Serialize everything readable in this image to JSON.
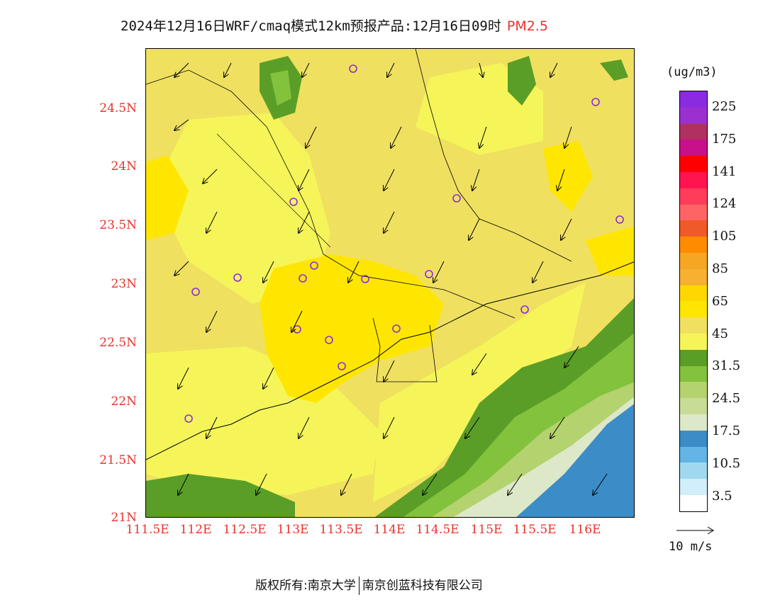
{
  "title": {
    "main": "2024年12月16日WRF/cmaq模式12km预报产品:12月16日09时",
    "pollutant": "PM2.5",
    "pollutant_color": "#e8322d"
  },
  "axes": {
    "y_ticks": [
      "24.5N",
      "24N",
      "23.5N",
      "23N",
      "22.5N",
      "22N",
      "21.5N",
      "21N"
    ],
    "x_ticks": [
      "111.5E",
      "112E",
      "112.5E",
      "113E",
      "113.5E",
      "114E",
      "114.5E",
      "115E",
      "115.5E",
      "116E"
    ]
  },
  "colorbar": {
    "unit": "(ug/m3)",
    "colors": [
      "#8a2be2",
      "#9b30d0",
      "#b03060",
      "#c8108a",
      "#ff0000",
      "#ff1450",
      "#ff3c5a",
      "#ff6464",
      "#f05a28",
      "#ff8c00",
      "#f5a623",
      "#f8b030",
      "#ffd700",
      "#ffe600",
      "#f0e060",
      "#f5f55a",
      "#5a9e28",
      "#82c23c",
      "#b4d26e",
      "#c8dc96",
      "#dce8c8",
      "#3c8cc8",
      "#64b4e6",
      "#a0d8f0",
      "#d2eefa",
      "#ffffff"
    ],
    "labels": [
      "225",
      "175",
      "141",
      "124",
      "105",
      "85",
      "65",
      "45",
      "31.5",
      "24.5",
      "17.5",
      "10.5",
      "3.5"
    ]
  },
  "vector_legend": {
    "label": "10 m/s"
  },
  "footer": {
    "left": "版权所有:南京大学",
    "right": "南京创蓝科技有限公司"
  }
}
